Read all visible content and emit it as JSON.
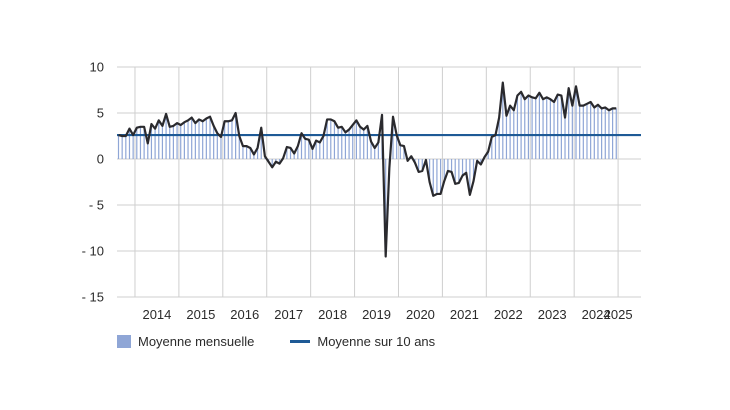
{
  "chart_data": {
    "type": "bar",
    "start": "2013-08",
    "values": [
      2.6,
      2.5,
      2.5,
      3.3,
      2.6,
      3.4,
      3.5,
      3.5,
      1.7,
      3.8,
      3.3,
      4.2,
      3.6,
      4.9,
      3.5,
      3.6,
      3.9,
      3.7,
      4.0,
      4.2,
      4.5,
      3.9,
      4.3,
      4.1,
      4.4,
      4.6,
      3.6,
      2.8,
      2.4,
      4.1,
      4.1,
      4.2,
      5.0,
      2.5,
      1.4,
      1.4,
      1.2,
      0.5,
      1.2,
      3.4,
      0.3,
      -0.3,
      -0.9,
      -0.3,
      -0.5,
      0.1,
      1.3,
      1.2,
      0.6,
      1.4,
      2.8,
      2.2,
      2.1,
      1.1,
      2.0,
      1.8,
      2.5,
      4.3,
      4.3,
      4.1,
      3.4,
      3.5,
      2.9,
      3.2,
      3.7,
      4.2,
      3.5,
      3.2,
      3.6,
      1.9,
      1.2,
      1.8,
      4.8,
      -10.6,
      -1.0,
      4.6,
      2.6,
      1.5,
      1.4,
      -0.2,
      0.3,
      -0.4,
      -1.4,
      -1.3,
      -0.1,
      -2.5,
      -4.0,
      -3.8,
      -3.8,
      -2.4,
      -1.3,
      -1.4,
      -2.7,
      -2.6,
      -1.8,
      -1.5,
      -3.9,
      -2.4,
      -0.2,
      -0.6,
      0.2,
      0.8,
      2.4,
      2.6,
      4.5,
      8.3,
      4.7,
      5.8,
      5.3,
      6.9,
      7.3,
      6.5,
      6.9,
      6.7,
      6.6,
      7.2,
      6.5,
      6.7,
      6.5,
      6.2,
      7.0,
      6.9,
      4.5,
      7.7,
      5.8,
      7.9,
      5.8,
      5.8,
      6.0,
      6.2,
      5.6,
      5.9,
      5.5,
      5.6,
      5.3,
      5.5,
      5.5
    ],
    "average_10y": 2.6,
    "year_labels": [
      "2014",
      "2015",
      "2016",
      "2017",
      "2018",
      "2019",
      "2020",
      "2021",
      "2022",
      "2023",
      "2024",
      "2025"
    ],
    "y_ticks": [
      "10",
      "5",
      "0",
      "- 5",
      "- 10",
      "- 15"
    ],
    "ylim": [
      -15,
      10
    ],
    "legend": [
      "Moyenne mensuelle",
      "Moyenne sur 10 ans"
    ],
    "colors": {
      "bar": "#8fa6d6",
      "line": "#2a2a2e",
      "average": "#1e5a96",
      "grid": "#cfcfcf"
    },
    "grid": true
  }
}
